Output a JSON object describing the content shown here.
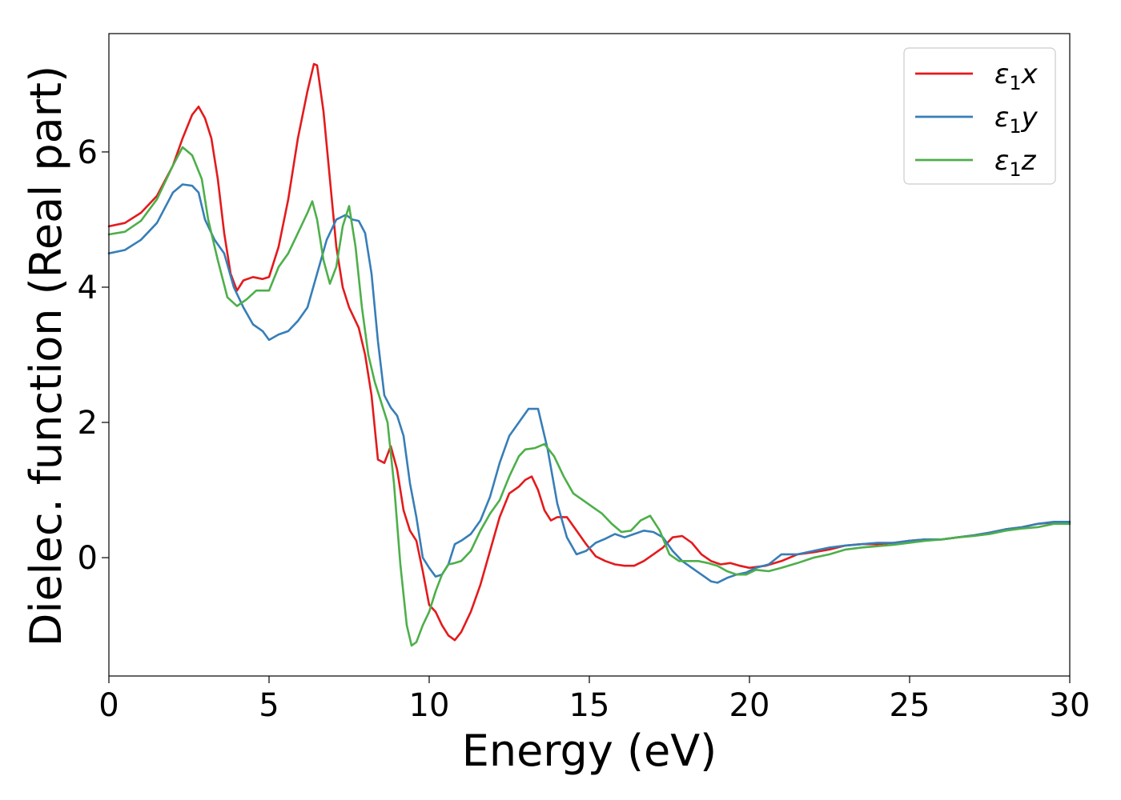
{
  "chart_data": {
    "type": "line",
    "title": "",
    "xlabel": "Energy (eV)",
    "ylabel": "Dielec. function (Real part)",
    "xlim": [
      0,
      30
    ],
    "ylim": [
      -1.75,
      7.75
    ],
    "xticks": [
      0,
      5,
      10,
      15,
      20,
      25,
      30
    ],
    "yticks": [
      0,
      2,
      4,
      6
    ],
    "grid": false,
    "legend_position": "top-right",
    "series": [
      {
        "name": "ε1x",
        "name_base": "ε",
        "name_sub": "1",
        "name_suffix": "x",
        "color": "#e41a1c",
        "x": [
          0,
          0.5,
          1.0,
          1.5,
          2.0,
          2.3,
          2.6,
          2.8,
          3.0,
          3.2,
          3.4,
          3.6,
          3.8,
          4.0,
          4.2,
          4.5,
          4.8,
          5.0,
          5.3,
          5.6,
          5.9,
          6.2,
          6.4,
          6.5,
          6.7,
          6.9,
          7.1,
          7.3,
          7.5,
          7.8,
          8.0,
          8.2,
          8.4,
          8.6,
          8.8,
          9.0,
          9.2,
          9.4,
          9.6,
          9.8,
          10.0,
          10.2,
          10.4,
          10.6,
          10.8,
          11.0,
          11.3,
          11.6,
          11.9,
          12.2,
          12.5,
          12.8,
          13.0,
          13.2,
          13.4,
          13.6,
          13.8,
          14.0,
          14.3,
          14.6,
          14.9,
          15.2,
          15.5,
          15.8,
          16.1,
          16.4,
          16.7,
          17.0,
          17.3,
          17.6,
          17.9,
          18.2,
          18.5,
          18.8,
          19.1,
          19.4,
          19.7,
          20.0,
          20.5,
          21.0,
          21.5,
          22.0,
          22.5,
          23.0,
          23.5,
          24.0,
          24.5,
          25.0,
          25.5,
          26.0,
          26.5,
          27.0,
          27.5,
          28.0,
          28.5,
          29.0,
          29.5,
          30.0
        ],
        "y": [
          4.9,
          4.95,
          5.1,
          5.35,
          5.8,
          6.2,
          6.55,
          6.67,
          6.5,
          6.2,
          5.6,
          4.8,
          4.2,
          3.95,
          4.1,
          4.15,
          4.12,
          4.15,
          4.6,
          5.3,
          6.2,
          6.9,
          7.3,
          7.28,
          6.6,
          5.6,
          4.6,
          4.0,
          3.7,
          3.4,
          3.0,
          2.4,
          1.45,
          1.4,
          1.65,
          1.3,
          0.7,
          0.4,
          0.25,
          -0.2,
          -0.7,
          -0.8,
          -1.0,
          -1.15,
          -1.22,
          -1.1,
          -0.8,
          -0.4,
          0.1,
          0.6,
          0.95,
          1.05,
          1.15,
          1.2,
          1.0,
          0.7,
          0.55,
          0.6,
          0.6,
          0.4,
          0.2,
          0.02,
          -0.05,
          -0.1,
          -0.12,
          -0.12,
          -0.05,
          0.05,
          0.15,
          0.3,
          0.32,
          0.22,
          0.05,
          -0.05,
          -0.1,
          -0.08,
          -0.12,
          -0.15,
          -0.12,
          -0.05,
          0.05,
          0.08,
          0.12,
          0.18,
          0.2,
          0.2,
          0.22,
          0.25,
          0.27,
          0.27,
          0.3,
          0.33,
          0.37,
          0.42,
          0.45,
          0.5,
          0.52,
          0.53
        ]
      },
      {
        "name": "ε1y",
        "name_base": "ε",
        "name_sub": "1",
        "name_suffix": "y",
        "color": "#377eb8",
        "x": [
          0,
          0.5,
          1.0,
          1.5,
          2.0,
          2.3,
          2.6,
          2.8,
          3.0,
          3.3,
          3.6,
          3.9,
          4.2,
          4.5,
          4.8,
          5.0,
          5.3,
          5.6,
          5.9,
          6.2,
          6.5,
          6.8,
          7.1,
          7.4,
          7.6,
          7.8,
          8.0,
          8.2,
          8.4,
          8.6,
          8.8,
          9.0,
          9.2,
          9.4,
          9.6,
          9.8,
          10.0,
          10.2,
          10.4,
          10.6,
          10.8,
          11.0,
          11.3,
          11.6,
          11.9,
          12.2,
          12.5,
          12.8,
          13.1,
          13.4,
          13.7,
          14.0,
          14.3,
          14.6,
          14.9,
          15.2,
          15.5,
          15.8,
          16.1,
          16.4,
          16.7,
          17.0,
          17.3,
          17.6,
          17.9,
          18.2,
          18.5,
          18.8,
          19.0,
          19.3,
          19.6,
          19.9,
          20.2,
          20.6,
          21.0,
          21.5,
          22.0,
          22.5,
          23.0,
          23.5,
          24.0,
          24.5,
          25.0,
          25.5,
          26.0,
          26.5,
          27.0,
          27.5,
          28.0,
          28.5,
          29.0,
          29.5,
          30.0
        ],
        "y": [
          4.5,
          4.55,
          4.7,
          4.95,
          5.4,
          5.52,
          5.5,
          5.4,
          5.0,
          4.7,
          4.5,
          4.0,
          3.7,
          3.45,
          3.35,
          3.22,
          3.3,
          3.35,
          3.5,
          3.7,
          4.2,
          4.7,
          5.0,
          5.07,
          5.0,
          4.98,
          4.8,
          4.2,
          3.2,
          2.4,
          2.22,
          2.1,
          1.8,
          1.1,
          0.6,
          0.0,
          -0.15,
          -0.28,
          -0.25,
          -0.1,
          0.2,
          0.25,
          0.35,
          0.55,
          0.9,
          1.4,
          1.8,
          2.0,
          2.2,
          2.2,
          1.6,
          0.8,
          0.3,
          0.05,
          0.1,
          0.22,
          0.28,
          0.35,
          0.3,
          0.35,
          0.4,
          0.38,
          0.3,
          0.1,
          -0.05,
          -0.15,
          -0.25,
          -0.35,
          -0.37,
          -0.3,
          -0.25,
          -0.22,
          -0.15,
          -0.1,
          0.05,
          0.05,
          0.1,
          0.15,
          0.18,
          0.2,
          0.22,
          0.22,
          0.25,
          0.27,
          0.27,
          0.3,
          0.33,
          0.37,
          0.42,
          0.45,
          0.5,
          0.53,
          0.53
        ]
      },
      {
        "name": "ε1z",
        "name_base": "ε",
        "name_sub": "1",
        "name_suffix": "z",
        "color": "#4daf4a",
        "x": [
          0,
          0.5,
          1.0,
          1.5,
          2.0,
          2.3,
          2.6,
          2.9,
          3.1,
          3.4,
          3.7,
          4.0,
          4.3,
          4.6,
          5.0,
          5.3,
          5.6,
          5.9,
          6.2,
          6.35,
          6.5,
          6.7,
          6.9,
          7.1,
          7.3,
          7.5,
          7.7,
          7.9,
          8.1,
          8.3,
          8.5,
          8.7,
          8.9,
          9.1,
          9.3,
          9.45,
          9.6,
          9.8,
          10.0,
          10.2,
          10.4,
          10.6,
          10.8,
          11.0,
          11.3,
          11.6,
          11.9,
          12.2,
          12.5,
          12.8,
          13.0,
          13.3,
          13.6,
          13.9,
          14.2,
          14.5,
          14.8,
          15.1,
          15.4,
          15.7,
          16.0,
          16.3,
          16.6,
          16.9,
          17.2,
          17.5,
          17.8,
          18.1,
          18.4,
          18.7,
          19.0,
          19.3,
          19.6,
          19.9,
          20.2,
          20.6,
          21.0,
          21.5,
          22.0,
          22.5,
          23.0,
          23.5,
          24.0,
          24.5,
          25.0,
          25.5,
          26.0,
          26.5,
          27.0,
          27.5,
          28.0,
          28.5,
          29.0,
          29.5,
          30.0
        ],
        "y": [
          4.78,
          4.82,
          4.98,
          5.3,
          5.8,
          6.07,
          5.95,
          5.6,
          5.0,
          4.4,
          3.85,
          3.72,
          3.82,
          3.95,
          3.95,
          4.3,
          4.5,
          4.8,
          5.1,
          5.27,
          5.0,
          4.4,
          4.05,
          4.3,
          4.9,
          5.2,
          4.6,
          3.7,
          3.0,
          2.6,
          2.3,
          2.0,
          1.1,
          -0.1,
          -1.0,
          -1.3,
          -1.25,
          -1.0,
          -0.8,
          -0.5,
          -0.25,
          -0.1,
          -0.08,
          -0.05,
          0.1,
          0.4,
          0.65,
          0.85,
          1.2,
          1.5,
          1.6,
          1.62,
          1.68,
          1.5,
          1.2,
          0.95,
          0.85,
          0.75,
          0.65,
          0.5,
          0.38,
          0.4,
          0.55,
          0.62,
          0.4,
          0.05,
          -0.05,
          -0.05,
          -0.05,
          -0.08,
          -0.12,
          -0.2,
          -0.25,
          -0.25,
          -0.18,
          -0.2,
          -0.15,
          -0.08,
          0.0,
          0.05,
          0.12,
          0.15,
          0.17,
          0.19,
          0.22,
          0.25,
          0.27,
          0.3,
          0.32,
          0.35,
          0.4,
          0.43,
          0.45,
          0.5,
          0.5
        ]
      }
    ]
  }
}
